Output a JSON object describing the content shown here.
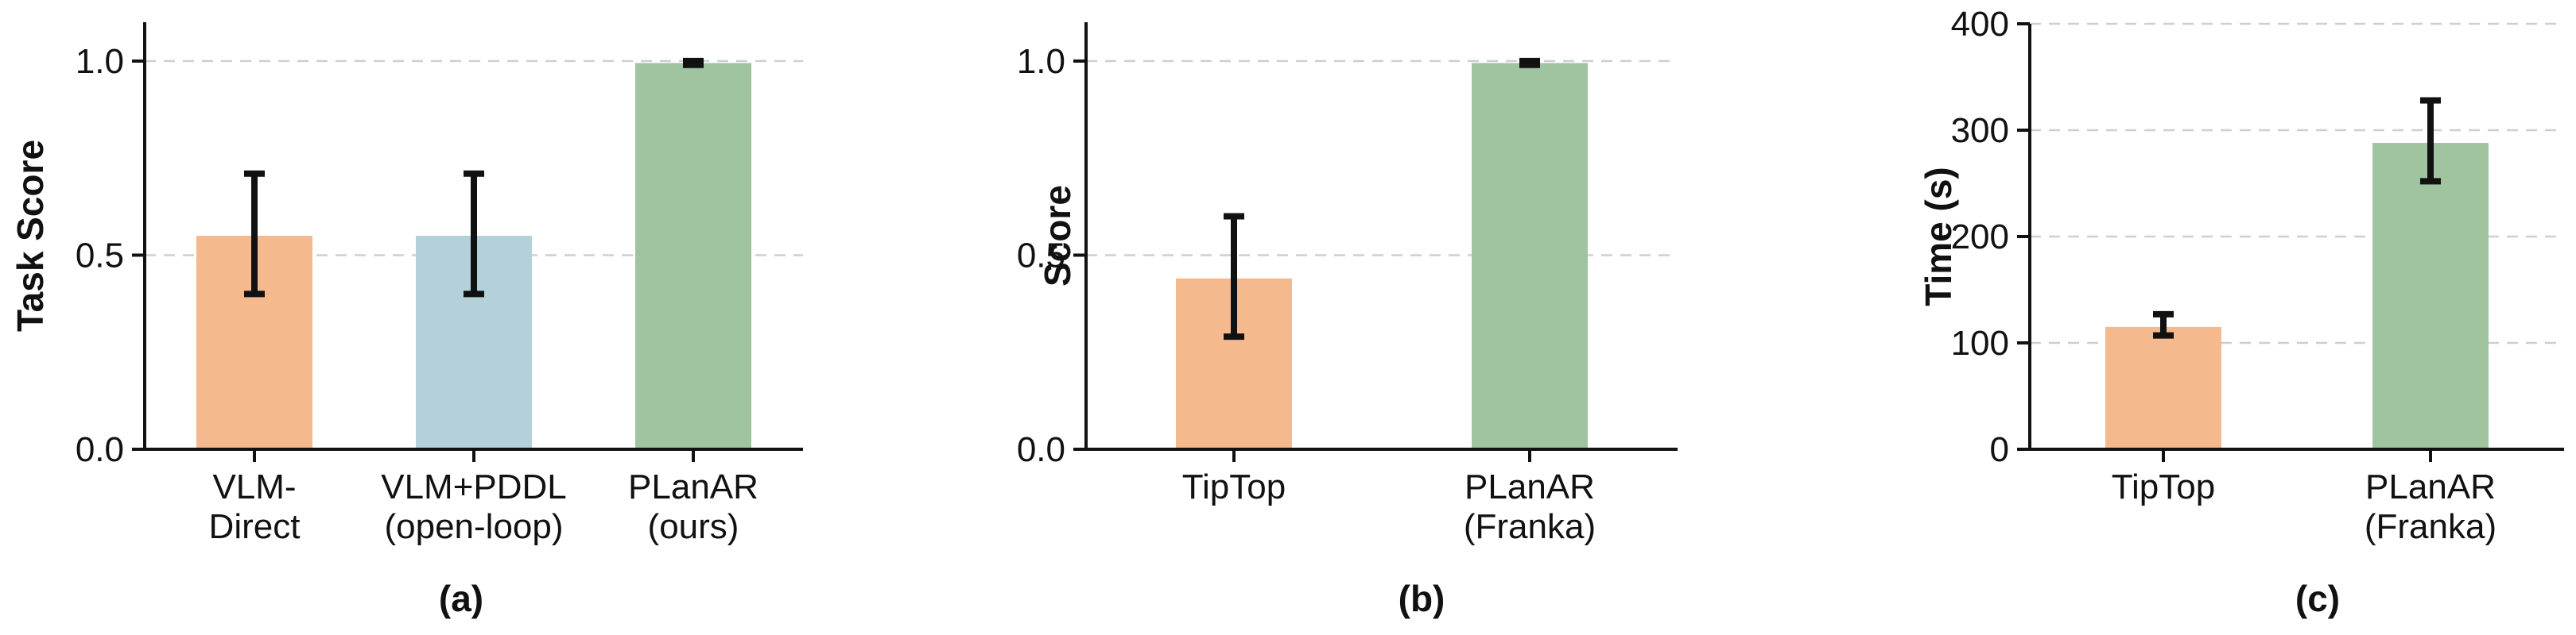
{
  "chart_data": [
    {
      "type": "bar",
      "panel_label": "(a)",
      "ylabel": "Task Score",
      "ylim": [
        0,
        1.1
      ],
      "yticks": [
        0.0,
        0.5,
        1.0
      ],
      "ytick_labels": [
        "0.0",
        "0.5",
        "1.0"
      ],
      "grid": true,
      "categories": [
        [
          "VLM-",
          "Direct"
        ],
        [
          "VLM+PDDL",
          "(open-loop)"
        ],
        [
          "PLanAR",
          "(ours)"
        ]
      ],
      "values": [
        0.55,
        0.55,
        0.995
      ],
      "error_low": [
        0.4,
        0.4,
        0.99
      ],
      "error_high": [
        0.71,
        0.71,
        1.0
      ],
      "colors": [
        "#f5b98e",
        "#b4d0d8",
        "#a0c4a0"
      ]
    },
    {
      "type": "bar",
      "panel_label": "(b)",
      "ylabel": "Score",
      "ylim": [
        0,
        1.1
      ],
      "yticks": [
        0.0,
        0.5,
        1.0
      ],
      "ytick_labels": [
        "0.0",
        "0.5",
        "1.0"
      ],
      "grid": true,
      "categories": [
        [
          "TipTop"
        ],
        [
          "PLanAR",
          "(Franka)"
        ]
      ],
      "values": [
        0.44,
        0.995
      ],
      "error_low": [
        0.29,
        0.99
      ],
      "error_high": [
        0.6,
        1.0
      ],
      "colors": [
        "#f5b98e",
        "#a0c4a0"
      ]
    },
    {
      "type": "bar",
      "panel_label": "(c)",
      "ylabel": "Time (s)",
      "ylim": [
        0,
        400
      ],
      "yticks": [
        0,
        100,
        200,
        300,
        400
      ],
      "ytick_labels": [
        "0",
        "100",
        "200",
        "300",
        "400"
      ],
      "grid": true,
      "categories": [
        [
          "TipTop"
        ],
        [
          "PLanAR",
          "(Franka)"
        ]
      ],
      "values": [
        115,
        288
      ],
      "error_low": [
        107,
        252
      ],
      "error_high": [
        127,
        328
      ],
      "colors": [
        "#f5b98e",
        "#a0c4a0"
      ]
    }
  ]
}
